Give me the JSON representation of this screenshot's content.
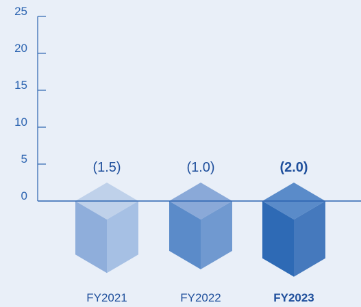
{
  "chart_data": {
    "type": "bar",
    "categories": [
      "FY2021",
      "FY2022",
      "FY2023"
    ],
    "values": [
      -1.5,
      -1.0,
      -2.0
    ],
    "data_labels": [
      "(1.5)",
      "(1.0)",
      "(2.0)"
    ],
    "highlight_index": 2,
    "ylim": [
      0,
      25
    ],
    "yticks": [
      {
        "value": 0,
        "label": "0"
      },
      {
        "value": 5,
        "label": "5"
      },
      {
        "value": 10,
        "label": "10"
      },
      {
        "value": 15,
        "label": "15"
      },
      {
        "value": 20,
        "label": "20"
      },
      {
        "value": 25,
        "label": "25"
      }
    ],
    "title": "",
    "xlabel": "",
    "ylabel": "",
    "grid": false,
    "style": "3d-cube"
  },
  "colors": {
    "background": "#e9eff8",
    "axis": "#2b63b0",
    "bars": [
      {
        "top": "#bfd1ea",
        "left": "#8faedb",
        "right": "#a6c0e4"
      },
      {
        "top": "#8aa9d8",
        "left": "#5b8bc9",
        "right": "#7099d0"
      },
      {
        "top": "#5a8bc9",
        "left": "#2e6ab5",
        "right": "#4579bd"
      }
    ]
  }
}
